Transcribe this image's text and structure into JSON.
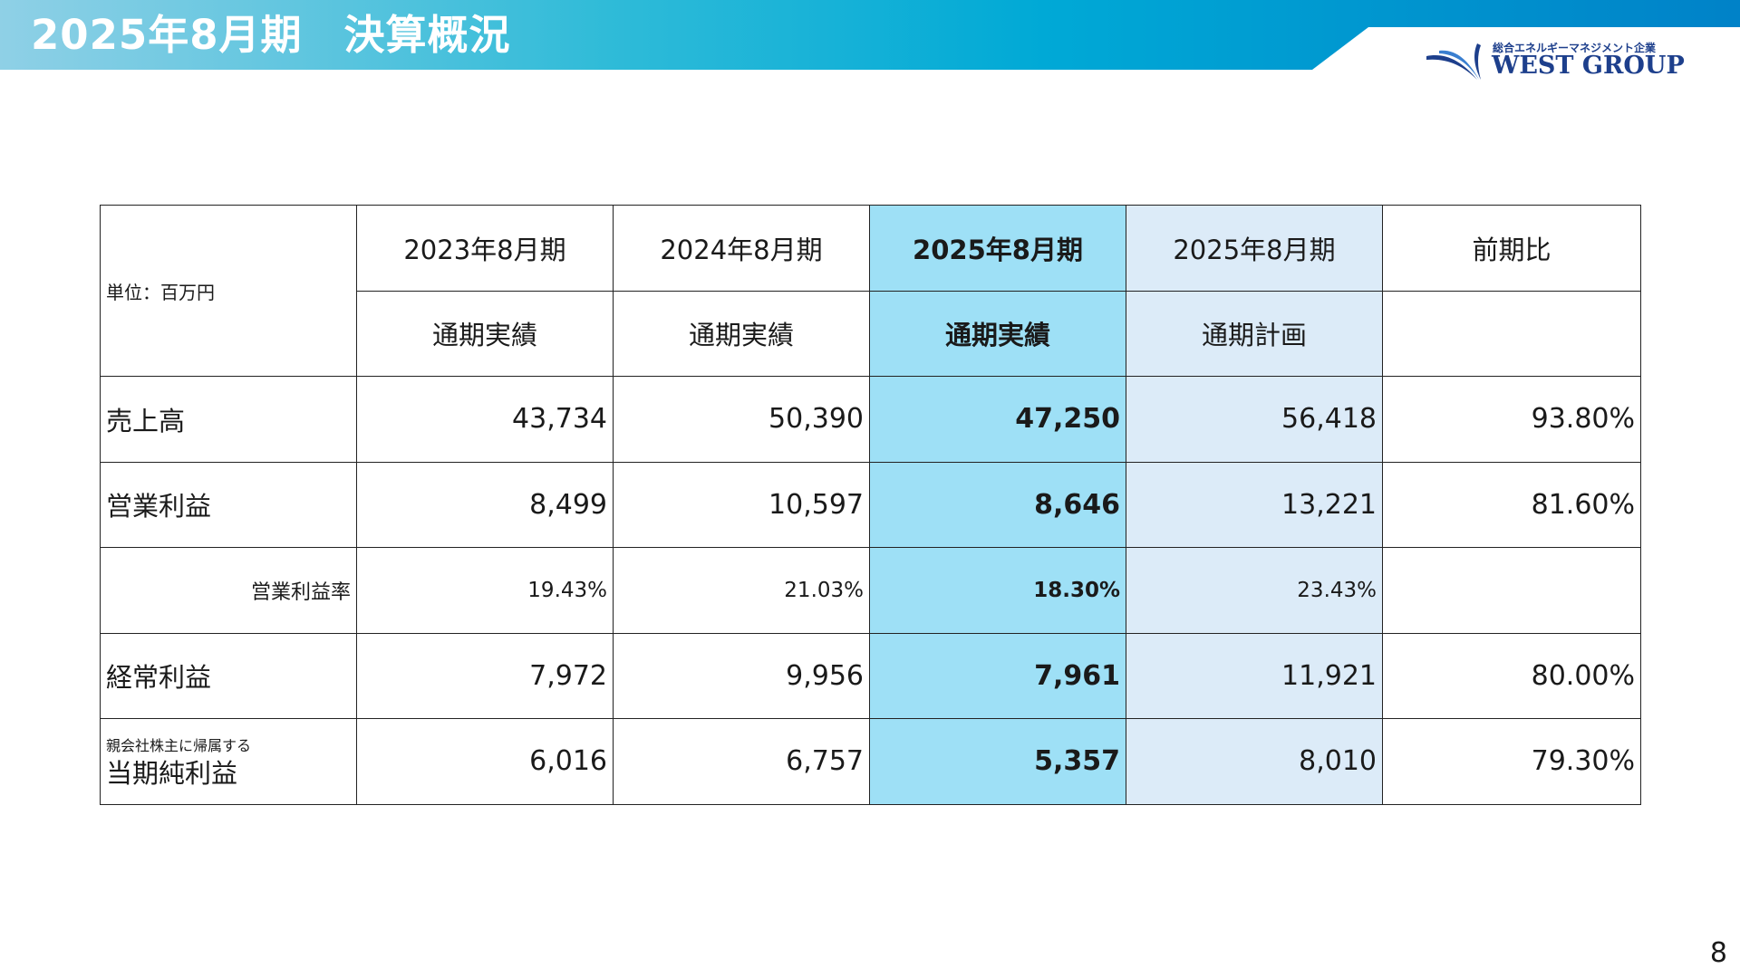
{
  "slide": {
    "title": "2025年8月期　決算概況",
    "page_number": "8"
  },
  "logo": {
    "tagline": "総合エネルギーマネジメント企業",
    "name": "WEST GROUP"
  },
  "table": {
    "unit_label": "単位：百万円",
    "columns": [
      {
        "period": "2023年8月期",
        "type": "通期実績"
      },
      {
        "period": "2024年8月期",
        "type": "通期実績"
      },
      {
        "period": "2025年8月期",
        "type": "通期実績"
      },
      {
        "period": "2025年8月期",
        "type": "通期計画"
      },
      {
        "period": "前期比",
        "type": ""
      }
    ],
    "rows": [
      {
        "label": "売上高",
        "values": [
          "43,734",
          "50,390",
          "47,250",
          "56,418",
          "93.80%"
        ]
      },
      {
        "label": "営業利益",
        "values": [
          "8,499",
          "10,597",
          "8,646",
          "13,221",
          "81.60%"
        ]
      },
      {
        "label": "営業利益率",
        "values": [
          "19.43%",
          "21.03%",
          "18.30%",
          "23.43%",
          ""
        ]
      },
      {
        "label": "経常利益",
        "values": [
          "7,972",
          "9,956",
          "7,961",
          "11,921",
          "80.00%"
        ]
      },
      {
        "label_small": "親会社株主に帰属する",
        "label": "当期純利益",
        "values": [
          "6,016",
          "6,757",
          "5,357",
          "8,010",
          "79.30%"
        ]
      }
    ]
  },
  "colors": {
    "header_gradient_start": "#8fd0e6",
    "header_gradient_end": "#0082c8",
    "highlight_actual": "#9ee0f6",
    "highlight_plan": "#dcebf8",
    "logo_blue": "#1d3f8c"
  }
}
